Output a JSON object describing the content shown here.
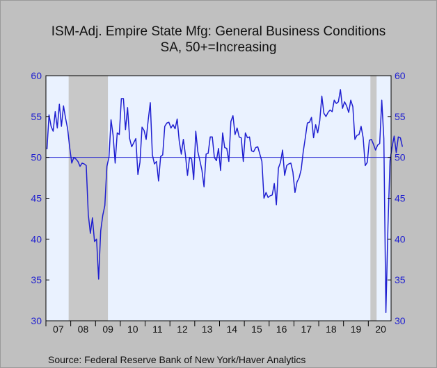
{
  "chart_data": {
    "type": "line",
    "title": "ISM-Adj. Empire State Mfg: General Business Conditions",
    "subtitle": "SA, 50+=Increasing",
    "source": "Source:  Federal Reserve Bank of New York/Haver Analytics",
    "xlabel": "",
    "ylabel": "",
    "ylim": [
      30,
      60
    ],
    "y_ticks": [
      30,
      35,
      40,
      45,
      50,
      55,
      60
    ],
    "reference_line": 50,
    "x_range": [
      "2007-01",
      "2020-11"
    ],
    "x_tick_labels": [
      "07",
      "08",
      "09",
      "10",
      "11",
      "12",
      "13",
      "14",
      "15",
      "16",
      "17",
      "18",
      "19",
      "20"
    ],
    "recessions": [
      [
        "2007-12",
        "2009-06"
      ],
      [
        "2020-02",
        "2020-04"
      ]
    ],
    "colors": {
      "line": "#1f1fd0",
      "plot_bg": "#eaf2ff",
      "recession": "#c8c8c8",
      "axis_text": "#1f1fd0",
      "page_bg": "#c0c0c0"
    },
    "grid": false,
    "series": [
      {
        "name": "General Business Conditions",
        "start": "2007-01",
        "values": [
          51.0,
          55.2,
          53.8,
          53.2,
          55.6,
          53.6,
          56.5,
          53.8,
          56.3,
          54.8,
          53.5,
          51.2,
          49.3,
          50.0,
          49.8,
          49.5,
          48.9,
          49.3,
          49.2,
          49.0,
          43.0,
          40.7,
          42.6,
          39.7,
          40.0,
          35.1,
          41.0,
          42.9,
          44.1,
          48.9,
          50.0,
          54.6,
          52.7,
          49.3,
          53.0,
          52.8,
          57.2,
          57.2,
          53.4,
          56.1,
          52.3,
          51.3,
          51.8,
          52.3,
          47.9,
          49.4,
          53.7,
          53.3,
          52.2,
          54.6,
          56.7,
          50.3,
          49.2,
          49.5,
          47.1,
          50.1,
          50.3,
          53.8,
          54.2,
          54.3,
          53.6,
          54.0,
          53.5,
          54.7,
          52.0,
          50.4,
          52.2,
          50.3,
          47.8,
          50.0,
          49.8,
          47.3,
          53.2,
          50.7,
          49.6,
          48.4,
          46.4,
          50.4,
          50.5,
          52.5,
          52.5,
          50.0,
          49.6,
          51.1,
          48.4,
          53.0,
          51.2,
          51.1,
          49.5,
          54.4,
          55.1,
          52.8,
          53.6,
          52.5,
          52.4,
          49.5,
          53.0,
          52.4,
          52.5,
          50.8,
          50.7,
          51.2,
          51.3,
          50.4,
          49.5,
          45.0,
          45.7,
          45.1,
          45.3,
          45.4,
          46.8,
          44.2,
          48.7,
          49.4,
          50.9,
          47.8,
          49.0,
          49.2,
          49.3,
          48.2,
          45.7,
          47.0,
          47.5,
          48.5,
          50.7,
          52.4,
          54.2,
          54.3,
          54.9,
          52.4,
          54.0,
          53.0,
          54.5,
          57.5,
          55.4,
          55.0,
          55.5,
          55.8,
          55.6,
          57.0,
          56.6,
          56.8,
          58.3,
          56.0,
          56.8,
          56.3,
          55.5,
          57.0,
          56.2,
          52.2,
          52.7,
          52.8,
          53.8,
          52.4,
          49.0,
          49.4,
          52.1,
          52.2,
          51.6,
          50.9,
          51.5,
          51.7,
          57.0,
          52.3,
          31.0,
          41.6,
          49.6,
          51.3,
          52.6,
          50.6,
          52.5,
          52.4,
          51.3
        ]
      }
    ]
  }
}
